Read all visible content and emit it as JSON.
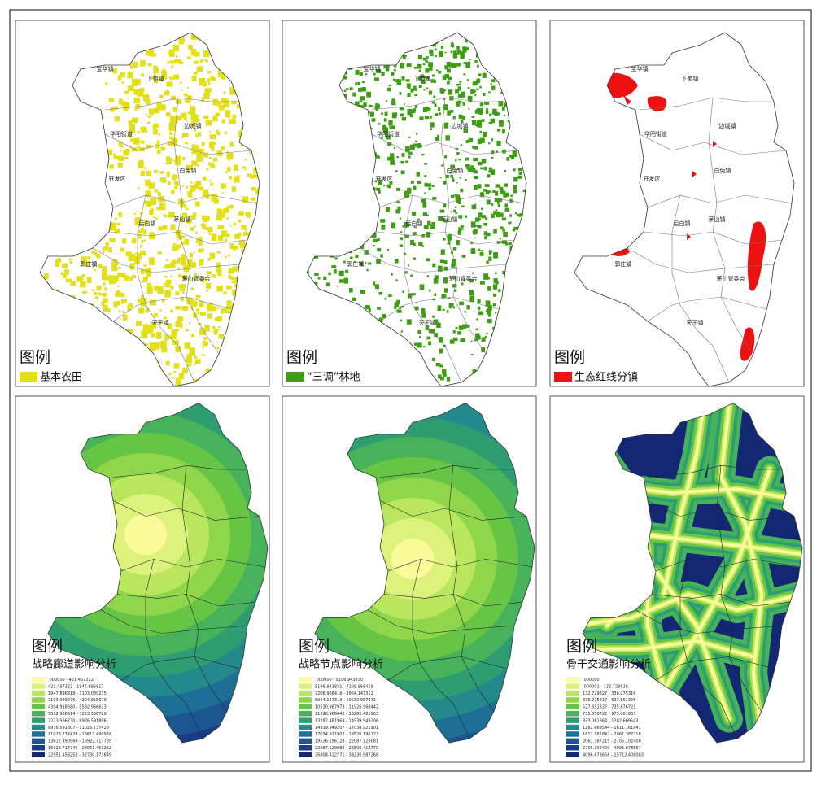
{
  "panels": [
    {
      "legend_title": "图例",
      "legend_items": [
        {
          "label": "基本农田",
          "color": "#e3e01a"
        }
      ]
    },
    {
      "legend_title": "图例",
      "legend_items": [
        {
          "label": "“三调”林地",
          "color": "#3d9e12"
        }
      ]
    },
    {
      "legend_title": "图例",
      "legend_items": [
        {
          "label": "生态红线分镇",
          "color": "#ee1111"
        }
      ]
    },
    {
      "legend_title": "图例",
      "subtitle": "战略廊道影响分析",
      "legend_items": [
        {
          "label": ".000000 - 421.457322",
          "color": "#fbfb9c"
        },
        {
          "label": "421.457323 - 1947.896817",
          "color": "#dcf27a"
        },
        {
          "label": "1947.896818 - 3103.089275",
          "color": "#b8e65c"
        },
        {
          "label": "3103.089276 - 4304.918679",
          "color": "#8fd64a"
        },
        {
          "label": "4304.918680 - 5592.966613",
          "color": "#66c545"
        },
        {
          "label": "5592.966614 - 7223.566729",
          "color": "#46b25a"
        },
        {
          "label": "7223.566730 - 8976.591806",
          "color": "#2e9e72"
        },
        {
          "label": "8976.591807 - 11026.737428",
          "color": "#23898a"
        },
        {
          "label": "11026.737429 - 13617.490968",
          "color": "#1e6f96"
        },
        {
          "label": "13617.490969 - 16922.717739",
          "color": "#1c5591"
        },
        {
          "label": "16922.717740 - 22951.453252",
          "color": "#1a3c84"
        },
        {
          "label": "22951.453253 - 32730.173649",
          "color": "#142775"
        }
      ]
    },
    {
      "legend_title": "图例",
      "subtitle": "战略节点影响分析",
      "legend_items": [
        {
          "label": ".000000 - 5196.943830",
          "color": "#fbfb9c"
        },
        {
          "label": "5196.943831 - 7208.968418",
          "color": "#dcf27a"
        },
        {
          "label": "7208.968419 - 8964.147312",
          "color": "#b8e65c"
        },
        {
          "label": "8964.147313 - 10530.987972",
          "color": "#8fd64a"
        },
        {
          "label": "10530.987973 - 11926.968442",
          "color": "#66c545"
        },
        {
          "label": "11926.968443 - 13282.481963",
          "color": "#46b25a"
        },
        {
          "label": "13282.481964 - 14939.949206",
          "color": "#2e9e72"
        },
        {
          "label": "14939.949207 - 17034.921901",
          "color": "#23898a"
        },
        {
          "label": "17034.921902 - 19526.196127",
          "color": "#1e6f96"
        },
        {
          "label": "19526.196128 - 22087.129081",
          "color": "#1c5591"
        },
        {
          "label": "22087.129082 - 26808.412770",
          "color": "#1a3c84"
        },
        {
          "label": "26808.412771 - 39230.987266",
          "color": "#142775"
        }
      ]
    },
    {
      "legend_title": "图例",
      "subtitle": "骨干交通影响分析",
      "legend_items": [
        {
          "label": ".000000",
          "color": "#fbfb9c"
        },
        {
          "label": ".000001 - 132.729826",
          "color": "#dcf27a"
        },
        {
          "label": "132.729827 - 336.275316",
          "color": "#b8e65c"
        },
        {
          "label": "336.275317 - 527.651326",
          "color": "#8fd64a"
        },
        {
          "label": "527.651327 - 735.876721",
          "color": "#66c545"
        },
        {
          "label": "735.876722 - 973.061863",
          "color": "#46b25a"
        },
        {
          "label": "973.061864 - 1282.669543",
          "color": "#2e9e72"
        },
        {
          "label": "1282.669544 - 1611.161841",
          "color": "#23898a"
        },
        {
          "label": "1611.161842 - 2061.387218",
          "color": "#1e6f96"
        },
        {
          "label": "2061.387219 - 2705.102408",
          "color": "#1c5591"
        },
        {
          "label": "2705.102409 - 4096.873657",
          "color": "#1a3c84"
        },
        {
          "label": "4096.873658 - 15712.408083",
          "color": "#142775"
        }
      ]
    }
  ],
  "towns": [
    "宝华镇",
    "下蜀镇",
    "华阳街道",
    "边城镇",
    "开发区",
    "白兔镇",
    "茅山镇",
    "后白镇",
    "郭庄镇",
    "茅山管委会",
    "天王镇"
  ]
}
